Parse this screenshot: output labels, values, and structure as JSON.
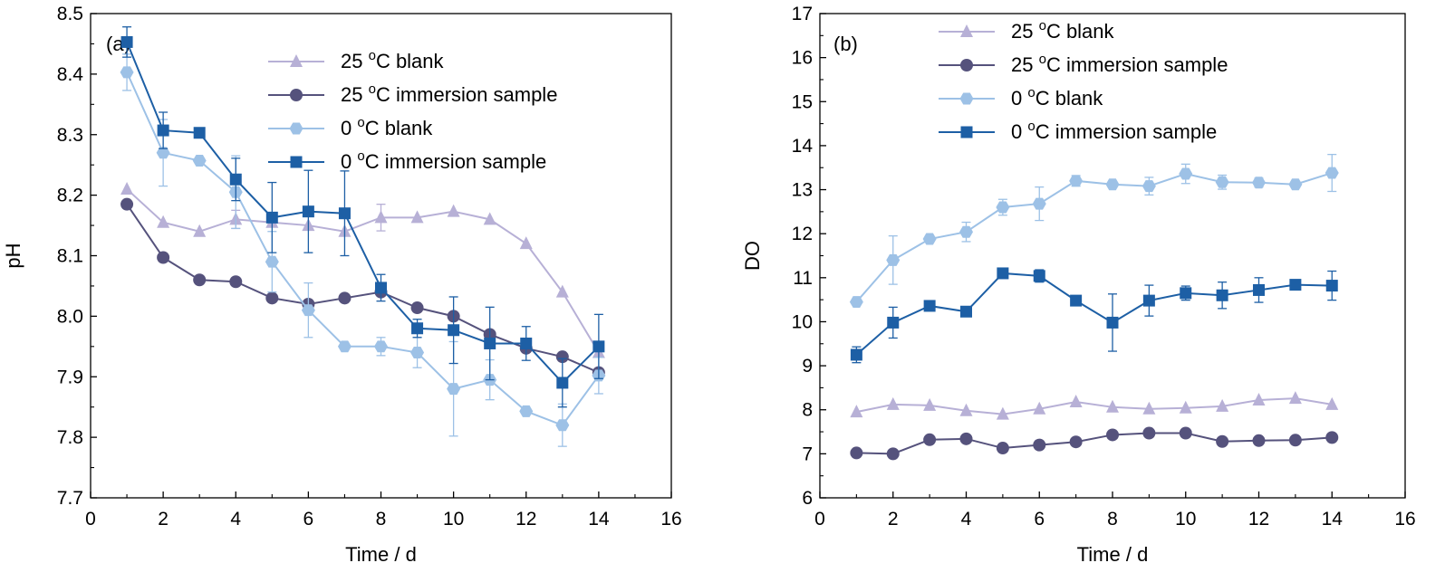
{
  "chart_data": [
    {
      "type": "line",
      "panel_label": "(a)",
      "xlabel": "Time / d",
      "ylabel": "pH",
      "xlim": [
        0,
        16
      ],
      "ylim": [
        7.7,
        8.5
      ],
      "xticks": [
        "0",
        "2",
        "4",
        "6",
        "8",
        "10",
        "12",
        "14",
        "16"
      ],
      "yticks": [
        "7.7",
        "7.8",
        "7.9",
        "8.0",
        "8.1",
        "8.2",
        "8.3",
        "8.4",
        "8.5"
      ],
      "grid": false,
      "legend_placement": "top-right",
      "x": [
        1,
        2,
        3,
        4,
        5,
        6,
        7,
        8,
        9,
        10,
        11,
        12,
        13,
        14
      ],
      "series": [
        {
          "name": "25 °C blank",
          "legend_main": "25 ",
          "legend_sup": "o",
          "legend_tail": "C blank",
          "color": "#b7b0d6",
          "marker": "triangle",
          "values": [
            8.21,
            8.155,
            8.14,
            8.16,
            8.155,
            8.15,
            8.14,
            8.163,
            8.163,
            8.173,
            8.16,
            8.12,
            8.04,
            7.94
          ],
          "errors": [
            0,
            0,
            0,
            0.015,
            0,
            0,
            0,
            0.022,
            0,
            0,
            0,
            0,
            0,
            0
          ]
        },
        {
          "name": "25 °C immersion sample",
          "legend_main": "25 ",
          "legend_sup": "o",
          "legend_tail": "C immersion sample",
          "color": "#55527c",
          "marker": "circle",
          "values": [
            8.185,
            8.097,
            8.06,
            8.057,
            8.03,
            8.02,
            8.03,
            8.04,
            8.014,
            8.0,
            7.97,
            7.947,
            7.933,
            7.907
          ],
          "errors": [
            0,
            0,
            0,
            0,
            0,
            0,
            0,
            0,
            0,
            0,
            0,
            0,
            0,
            0
          ]
        },
        {
          "name": "0 °C blank",
          "legend_main": "0 ",
          "legend_sup": "o",
          "legend_tail": "C blank",
          "color": "#9dc1e6",
          "marker": "hexagon",
          "values": [
            8.403,
            8.27,
            8.257,
            8.205,
            8.09,
            8.01,
            7.95,
            7.95,
            7.94,
            7.88,
            7.895,
            7.843,
            7.82,
            7.902
          ],
          "errors": [
            0.03,
            0.055,
            0,
            0.06,
            0.05,
            0.045,
            0,
            0.015,
            0.025,
            0.078,
            0.033,
            0,
            0.035,
            0.03
          ]
        },
        {
          "name": "0 °C immersion sample",
          "legend_main": "0 ",
          "legend_sup": "o",
          "legend_tail": "C immersion sample",
          "color": "#1d5fa5",
          "marker": "square",
          "values": [
            8.453,
            8.307,
            8.303,
            8.226,
            8.163,
            8.173,
            8.17,
            8.047,
            7.98,
            7.977,
            7.955,
            7.955,
            7.89,
            7.95
          ],
          "errors": [
            0.025,
            0.03,
            0.008,
            0.035,
            0.058,
            0.068,
            0.07,
            0.022,
            0.015,
            0.055,
            0.06,
            0.028,
            0.04,
            0.053
          ]
        }
      ]
    },
    {
      "type": "line",
      "panel_label": "(b)",
      "xlabel": "Time / d",
      "ylabel": "DO",
      "xlim": [
        0,
        16
      ],
      "ylim": [
        6,
        17
      ],
      "xticks": [
        "0",
        "2",
        "4",
        "6",
        "8",
        "10",
        "12",
        "14",
        "16"
      ],
      "yticks": [
        "6",
        "7",
        "8",
        "9",
        "10",
        "11",
        "12",
        "13",
        "14",
        "15",
        "16",
        "17"
      ],
      "grid": false,
      "legend_placement": "top-center",
      "x": [
        1,
        2,
        3,
        4,
        5,
        6,
        7,
        8,
        9,
        10,
        11,
        12,
        13,
        14
      ],
      "series": [
        {
          "name": "25 °C blank",
          "legend_main": "25 ",
          "legend_sup": "o",
          "legend_tail": "C blank",
          "color": "#b7b0d6",
          "marker": "triangle",
          "values": [
            7.95,
            8.12,
            8.1,
            7.98,
            7.9,
            8.02,
            8.18,
            8.06,
            8.02,
            8.04,
            8.08,
            8.22,
            8.26,
            8.12
          ],
          "errors": [
            0,
            0,
            0,
            0,
            0,
            0,
            0,
            0,
            0,
            0,
            0,
            0,
            0,
            0
          ]
        },
        {
          "name": "25 °C immersion sample",
          "legend_main": "25 ",
          "legend_sup": "o",
          "legend_tail": "C immersion sample",
          "color": "#55527c",
          "marker": "circle",
          "values": [
            7.02,
            7.0,
            7.32,
            7.34,
            7.13,
            7.2,
            7.27,
            7.43,
            7.47,
            7.47,
            7.28,
            7.3,
            7.31,
            7.37
          ],
          "errors": [
            0,
            0,
            0,
            0,
            0,
            0,
            0,
            0,
            0,
            0,
            0,
            0,
            0,
            0
          ]
        },
        {
          "name": "0 °C blank",
          "legend_main": "0 ",
          "legend_sup": "o",
          "legend_tail": "C blank",
          "color": "#9dc1e6",
          "marker": "hexagon",
          "values": [
            10.45,
            11.4,
            11.88,
            12.04,
            12.6,
            12.68,
            13.2,
            13.12,
            13.08,
            13.36,
            13.17,
            13.16,
            13.12,
            13.38
          ],
          "errors": [
            0,
            0.55,
            0,
            0.22,
            0.18,
            0.38,
            0.12,
            0,
            0.2,
            0.22,
            0.16,
            0.1,
            0,
            0.42
          ]
        },
        {
          "name": "0 °C immersion sample",
          "legend_main": "0 ",
          "legend_sup": "o",
          "legend_tail": "C immersion sample",
          "color": "#1d5fa5",
          "marker": "square",
          "values": [
            9.25,
            9.98,
            10.36,
            10.23,
            11.1,
            11.04,
            10.48,
            9.98,
            10.48,
            10.65,
            10.6,
            10.72,
            10.84,
            10.82
          ],
          "errors": [
            0.18,
            0.35,
            0,
            0,
            0,
            0.14,
            0,
            0.65,
            0.35,
            0.16,
            0.3,
            0.28,
            0,
            0.33
          ]
        }
      ]
    }
  ]
}
